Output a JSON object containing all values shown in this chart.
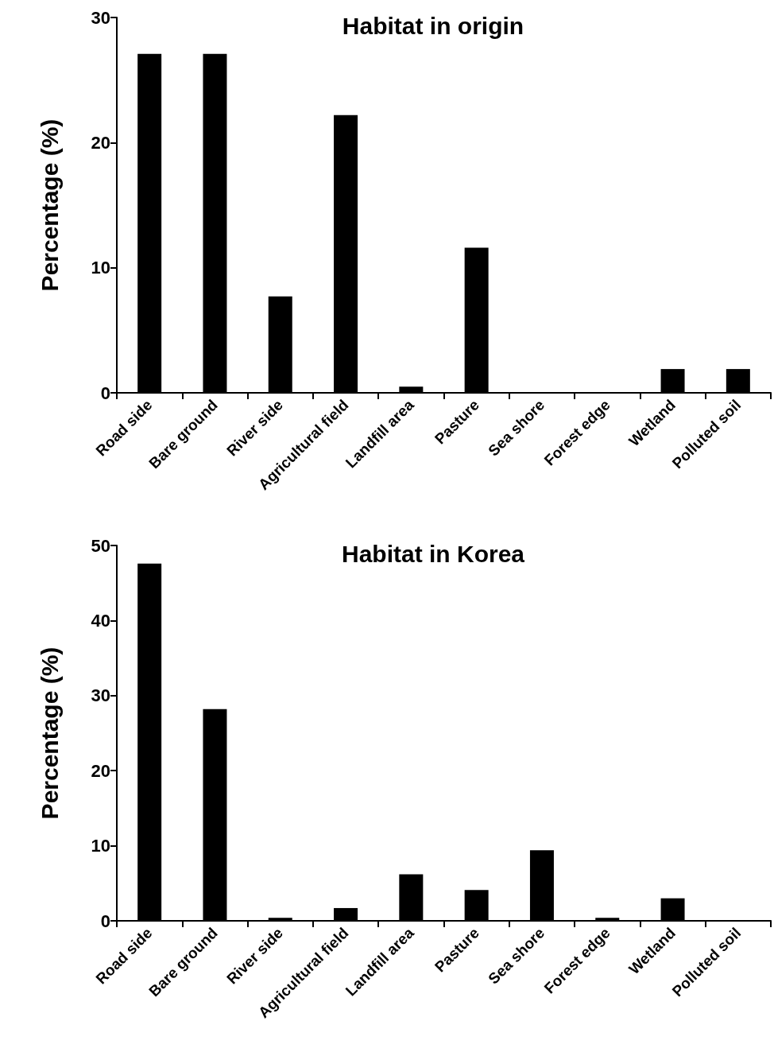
{
  "chart_data": [
    {
      "type": "bar",
      "title": "Habitat in origin",
      "ylabel": "Percentage (%)",
      "categories": [
        "Road side",
        "Bare ground",
        "River side",
        "Agricultural field",
        "Landfill area",
        "Pasture",
        "Sea shore",
        "Forest edge",
        "Wetland",
        "Polluted soil"
      ],
      "values": [
        27.1,
        27.1,
        7.7,
        22.2,
        0.5,
        11.6,
        0,
        0,
        1.9,
        1.9
      ],
      "color": "#000000",
      "ylim": [
        0,
        30
      ],
      "yticks": [
        0,
        10,
        20,
        30
      ],
      "grid": false
    },
    {
      "type": "bar",
      "title": "Habitat in Korea",
      "ylabel": "Percentage (%)",
      "categories": [
        "Road side",
        "Bare ground",
        "River side",
        "Agricultural field",
        "Landfill area",
        "Pasture",
        "Sea shore",
        "Forest edge",
        "Wetland",
        "Polluted soil"
      ],
      "values": [
        47.6,
        28.2,
        0.4,
        1.7,
        6.2,
        4.1,
        9.4,
        0.4,
        3.0,
        0
      ],
      "color": "#000000",
      "ylim": [
        0,
        50
      ],
      "yticks": [
        0,
        10,
        20,
        30,
        40,
        50
      ],
      "grid": false
    }
  ]
}
